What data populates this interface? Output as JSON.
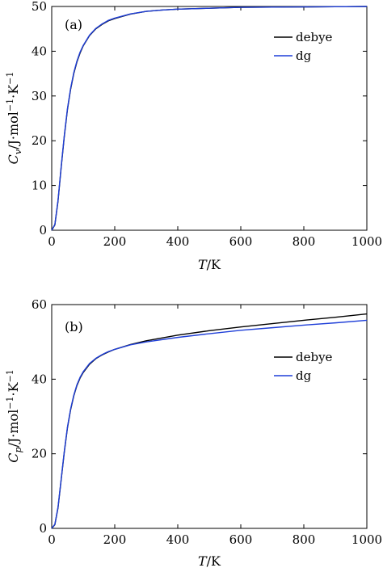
{
  "chart_data": [
    {
      "type": "line",
      "panel_label": "(a)",
      "xlabel": "T/K",
      "ylabel": "Cv/J·mol−1·K−1",
      "xlim": [
        0,
        1000
      ],
      "ylim": [
        0,
        50
      ],
      "xticks": [
        0,
        200,
        400,
        600,
        800,
        1000
      ],
      "yticks": [
        0,
        10,
        20,
        30,
        40,
        50
      ],
      "legend_position": "top-right",
      "x": [
        0,
        10,
        20,
        30,
        40,
        50,
        60,
        70,
        80,
        90,
        100,
        120,
        140,
        160,
        180,
        200,
        250,
        300,
        350,
        400,
        500,
        600,
        700,
        800,
        900,
        1000
      ],
      "series": [
        {
          "name": "debye",
          "color": "#000000",
          "values": [
            0,
            1.2,
            6.5,
            14.0,
            21.0,
            27.0,
            31.5,
            35.0,
            37.6,
            39.6,
            41.2,
            43.5,
            45.0,
            46.0,
            46.8,
            47.3,
            48.3,
            48.9,
            49.2,
            49.4,
            49.6,
            49.8,
            49.85,
            49.9,
            49.95,
            50.0
          ]
        },
        {
          "name": "dg",
          "color": "#1f3fd8",
          "values": [
            0,
            1.3,
            6.7,
            14.2,
            21.2,
            27.2,
            31.7,
            35.2,
            37.8,
            39.8,
            41.3,
            43.6,
            45.1,
            46.1,
            46.9,
            47.4,
            48.35,
            48.9,
            49.2,
            49.4,
            49.6,
            49.8,
            49.85,
            49.9,
            49.95,
            50.0
          ]
        }
      ]
    },
    {
      "type": "line",
      "panel_label": "(b)",
      "xlabel": "T/K",
      "ylabel": "Cp/J·mol−1·K−1",
      "xlim": [
        0,
        1000
      ],
      "ylim": [
        0,
        60
      ],
      "xticks": [
        0,
        200,
        400,
        600,
        800,
        1000
      ],
      "yticks": [
        0,
        20,
        40,
        60
      ],
      "legend_position": "right",
      "x": [
        0,
        10,
        20,
        30,
        40,
        50,
        60,
        70,
        80,
        90,
        100,
        120,
        140,
        160,
        180,
        200,
        250,
        300,
        400,
        500,
        600,
        700,
        800,
        900,
        1000
      ],
      "series": [
        {
          "name": "debye",
          "color": "#000000",
          "values": [
            0,
            1.0,
            5.5,
            13.0,
            20.5,
            27.0,
            31.8,
            35.5,
            38.3,
            40.3,
            41.8,
            44.0,
            45.5,
            46.5,
            47.3,
            48.0,
            49.3,
            50.3,
            51.8,
            53.0,
            54.0,
            54.9,
            55.8,
            56.6,
            57.5
          ]
        },
        {
          "name": "dg",
          "color": "#1f3fd8",
          "values": [
            0,
            1.1,
            5.7,
            13.2,
            20.7,
            27.2,
            32.0,
            35.7,
            38.5,
            40.5,
            42.0,
            44.2,
            45.6,
            46.6,
            47.4,
            48.0,
            49.2,
            50.0,
            51.2,
            52.2,
            53.1,
            53.8,
            54.5,
            55.1,
            55.8
          ]
        }
      ]
    }
  ]
}
